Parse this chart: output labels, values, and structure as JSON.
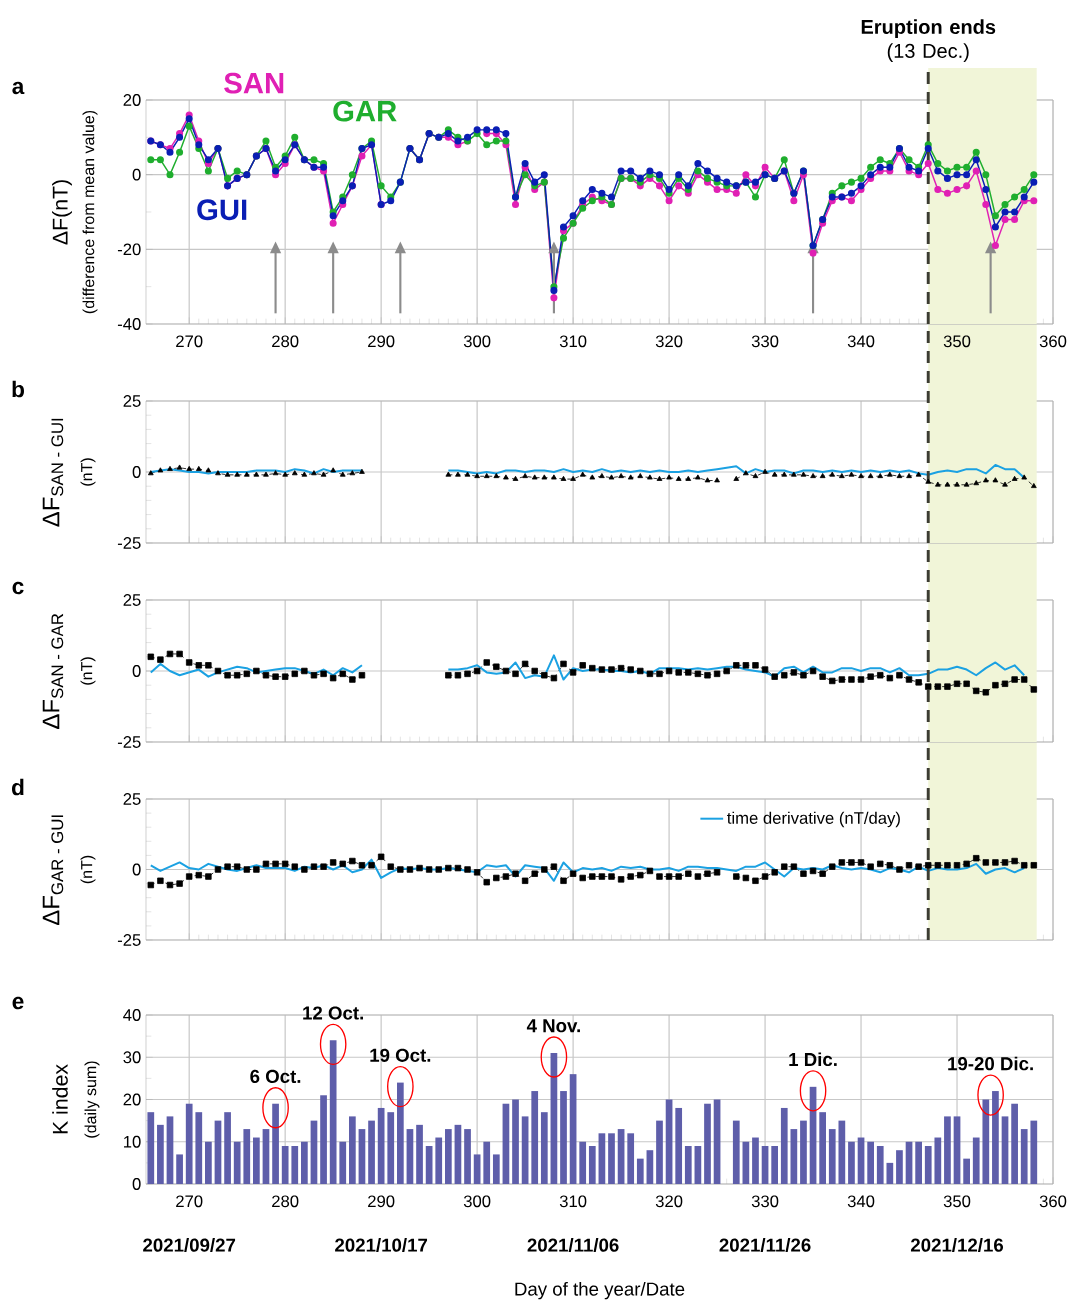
{
  "chart_data": [
    {
      "type": "line",
      "title": "a",
      "ylabel": "ΔF(nT)",
      "annotations": [
        "(difference from mean value)"
      ],
      "x": [
        266,
        267,
        268,
        269,
        270,
        271,
        272,
        273,
        274,
        275,
        276,
        277,
        278,
        279,
        280,
        281,
        282,
        283,
        284,
        285,
        286,
        287,
        288,
        289,
        290,
        291,
        292,
        293,
        294,
        295,
        296,
        297,
        298,
        299,
        300,
        301,
        302,
        303,
        304,
        305,
        306,
        307,
        308,
        309,
        310,
        311,
        312,
        313,
        314,
        315,
        316,
        317,
        318,
        319,
        320,
        321,
        322,
        323,
        324,
        325,
        326,
        327,
        328,
        329,
        330,
        331,
        332,
        333,
        334,
        335,
        336,
        337,
        338,
        339,
        340,
        341,
        342,
        343,
        344,
        345,
        346,
        347,
        348,
        349,
        350,
        351,
        352,
        353,
        354,
        355,
        356,
        357,
        358
      ],
      "xlim": [
        265.5,
        360
      ],
      "ylim": [
        -40,
        20
      ],
      "xticks": [
        270,
        280,
        290,
        300,
        310,
        320,
        330,
        340,
        350,
        360
      ],
      "yticks": [
        -40,
        -20,
        0,
        20
      ],
      "grid": true,
      "marker": "circle",
      "series": [
        {
          "name": "SAN",
          "color": "#e020b4",
          "values": [
            9,
            8,
            7,
            11,
            16,
            9,
            3,
            7,
            -3,
            -1,
            0,
            5,
            7,
            0,
            3,
            8,
            4,
            2,
            1,
            -13,
            -8,
            -3,
            5,
            8,
            -8,
            null,
            null,
            7,
            4,
            11,
            10,
            10,
            8,
            9,
            null,
            11,
            11,
            8,
            -8,
            2,
            -4,
            -2,
            -33,
            -15,
            -13,
            -8,
            -6,
            -7,
            -8,
            -1,
            -1,
            -3,
            -1,
            -3,
            -7,
            -3,
            -5,
            0,
            -2,
            -4,
            -4,
            -5,
            0,
            -3,
            2,
            -1,
            1,
            -7,
            0,
            -21,
            -13,
            -7,
            -6,
            -7,
            -4,
            -1,
            1,
            1,
            6,
            1,
            0,
            3,
            -4,
            -5,
            -4,
            -3,
            1,
            -8,
            -19,
            -12,
            -12,
            -7,
            -7
          ]
        },
        {
          "name": "GAR",
          "color": "#1fae2e",
          "values": [
            4,
            4,
            0,
            6,
            13,
            7,
            1,
            7,
            -1,
            1,
            0,
            5,
            9,
            2,
            5,
            10,
            4,
            4,
            3,
            -10,
            -6,
            0,
            7,
            9,
            -3,
            -6,
            -2,
            7,
            4,
            11,
            10,
            12,
            10,
            9,
            11,
            8,
            9,
            9,
            -6,
            0,
            -3,
            -2,
            -30,
            -17,
            -13,
            -9,
            -7,
            -6,
            -8,
            -1,
            -1,
            -2,
            0,
            -1,
            -5,
            -1,
            -4,
            1,
            -1,
            -2,
            -3,
            -3,
            -2,
            -6,
            0,
            -1,
            4,
            -5,
            1,
            -19,
            -12,
            -5,
            -3,
            -2,
            -1,
            2,
            4,
            3,
            7,
            4,
            2,
            8,
            3,
            1,
            2,
            2,
            6,
            0,
            -11,
            -8,
            -6,
            -4,
            0
          ]
        },
        {
          "name": "GUI",
          "color": "#0a1eb4",
          "values": [
            9,
            8,
            6,
            10,
            15,
            8,
            4,
            7,
            -3,
            -1,
            0,
            5,
            7,
            1,
            4,
            8,
            4,
            2,
            2,
            -11,
            -7,
            -3,
            7,
            8,
            -8,
            -7,
            -2,
            7,
            4,
            11,
            10,
            11,
            9,
            10,
            12,
            12,
            12,
            11,
            -6,
            3,
            -2,
            0,
            -31,
            -14,
            -11,
            -7,
            -4,
            -5,
            -6,
            1,
            1,
            -1,
            1,
            0,
            -4,
            0,
            -3,
            3,
            1,
            -1,
            -2,
            -3,
            -2,
            -2,
            0,
            -1,
            1,
            -5,
            1,
            -19,
            -12,
            -6,
            -6,
            -5,
            -3,
            0,
            2,
            2,
            7,
            2,
            1,
            7,
            1,
            -1,
            0,
            0,
            4,
            -4,
            -14,
            -10,
            -10,
            -6,
            -2
          ]
        }
      ],
      "ref_lines": [
        {
          "axis": "x",
          "value": 347,
          "label": "**Eruption ends** (13 Dec.)",
          "color": "#3c3c32",
          "line_style": "dashed"
        }
      ],
      "bands": [
        {
          "axis": "x",
          "from": 347,
          "to": 358.3,
          "color": "#f1f5d8"
        }
      ]
    },
    {
      "type": "line",
      "title": "b",
      "ylabel": "\\text{ΔF}_{\\text{SAN - GUI}}",
      "annotations": [
        "(nT)"
      ],
      "x": [
        266,
        267,
        268,
        269,
        270,
        271,
        272,
        273,
        274,
        275,
        276,
        277,
        278,
        279,
        280,
        281,
        282,
        283,
        284,
        285,
        286,
        287,
        288,
        289,
        290,
        291,
        292,
        293,
        294,
        295,
        296,
        297,
        298,
        299,
        300,
        301,
        302,
        303,
        304,
        305,
        306,
        307,
        308,
        309,
        310,
        311,
        312,
        313,
        314,
        315,
        316,
        317,
        318,
        319,
        320,
        321,
        322,
        323,
        324,
        325,
        326,
        327,
        328,
        329,
        330,
        331,
        332,
        333,
        334,
        335,
        336,
        337,
        338,
        339,
        340,
        341,
        342,
        343,
        344,
        345,
        346,
        347,
        348,
        349,
        350,
        351,
        352,
        353,
        354,
        355,
        356,
        357,
        358
      ],
      "xlim": [
        265.5,
        360
      ],
      "ylim": [
        -25,
        25
      ],
      "xticks": [
        270,
        280,
        290,
        300,
        310,
        320,
        330,
        340,
        350,
        360
      ],
      "yticks": [
        -25,
        0,
        25
      ],
      "grid": true,
      "tick_labels": "y",
      "series": [
        {
          "color": "#000000",
          "marker": "triangle",
          "line_style": "dashed",
          "values": [
            -0.5,
            0.5,
            1,
            1.5,
            1,
            1,
            0.5,
            -0.5,
            -1,
            -1,
            -1,
            -1,
            -1,
            -0.5,
            -1,
            -0.5,
            -1,
            -0.5,
            -1,
            0.5,
            -1,
            -0.5,
            0,
            null,
            null,
            null,
            null,
            null,
            null,
            null,
            null,
            -1,
            -1,
            -1,
            -1.5,
            -1.5,
            -1.5,
            -2,
            -2.5,
            -1.5,
            -2,
            -2,
            -2,
            -2.5,
            -2.5,
            -1,
            -2,
            -1.5,
            -2,
            -1.5,
            -2,
            -1.5,
            -2,
            -2.5,
            -2,
            -2.5,
            -2.5,
            -2,
            -3,
            -3,
            null,
            -2.5,
            -0.5,
            -1.5,
            0,
            -1,
            -1,
            -1,
            -1,
            -1.5,
            -1.5,
            -1,
            -1.5,
            -1,
            -1.5,
            -1.5,
            -1.5,
            -1,
            -1.5,
            -1.5,
            -1,
            -3.5,
            -4.5,
            -4.5,
            -4.5,
            -4.5,
            -4,
            -3,
            -3,
            -4.5,
            -2.5,
            -2,
            -5
          ]
        },
        {
          "color": "#1ba1e2",
          "marker": "none",
          "values": [
            0,
            0.5,
            1,
            0.5,
            0,
            0,
            -0.5,
            0,
            0,
            0,
            0,
            0.5,
            0.5,
            0.5,
            0,
            1,
            0.5,
            -0.5,
            1,
            0,
            0.5,
            0.5,
            0.5,
            null,
            null,
            null,
            null,
            null,
            null,
            null,
            null,
            0.5,
            0.5,
            0,
            -0.5,
            0,
            -0.5,
            0.5,
            0.5,
            0,
            0.5,
            0.5,
            0,
            1,
            0,
            0.5,
            0,
            1,
            0,
            0.5,
            0,
            0.5,
            0,
            0.5,
            0,
            0,
            0.5,
            0,
            0.5,
            1,
            1.5,
            2,
            -0.5,
            1,
            0,
            0.5,
            0.5,
            -0.5,
            0.5,
            0.5,
            0,
            0.5,
            0,
            0.5,
            0,
            0.5,
            0,
            0.5,
            0,
            0.5,
            -0.5,
            -1,
            0,
            0.5,
            0,
            1,
            1,
            -0.5,
            2.5,
            1,
            1,
            -2,
            null
          ]
        }
      ],
      "ref_lines": [
        {
          "axis": "x",
          "value": 347,
          "color": "#3c3c32",
          "line_style": "dashed"
        }
      ],
      "bands": [
        {
          "axis": "x",
          "from": 347,
          "to": 358.3,
          "color": "#f1f5d8"
        }
      ]
    },
    {
      "type": "line",
      "title": "c",
      "ylabel": "\\text{ΔF}_{\\text{SAN - GAR}}",
      "annotations": [
        "(nT)"
      ],
      "x": [
        266,
        267,
        268,
        269,
        270,
        271,
        272,
        273,
        274,
        275,
        276,
        277,
        278,
        279,
        280,
        281,
        282,
        283,
        284,
        285,
        286,
        287,
        288,
        289,
        290,
        291,
        292,
        293,
        294,
        295,
        296,
        297,
        298,
        299,
        300,
        301,
        302,
        303,
        304,
        305,
        306,
        307,
        308,
        309,
        310,
        311,
        312,
        313,
        314,
        315,
        316,
        317,
        318,
        319,
        320,
        321,
        322,
        323,
        324,
        325,
        326,
        327,
        328,
        329,
        330,
        331,
        332,
        333,
        334,
        335,
        336,
        337,
        338,
        339,
        340,
        341,
        342,
        343,
        344,
        345,
        346,
        347,
        348,
        349,
        350,
        351,
        352,
        353,
        354,
        355,
        356,
        357,
        358
      ],
      "xlim": [
        265.5,
        360
      ],
      "ylim": [
        -25,
        25
      ],
      "xticks": [
        270,
        280,
        290,
        300,
        310,
        320,
        330,
        340,
        350,
        360
      ],
      "yticks": [
        -25,
        0,
        25
      ],
      "grid": true,
      "tick_labels": "y",
      "series": [
        {
          "color": "#000000",
          "marker": "square",
          "line_style": "dashed",
          "values": [
            5,
            4,
            6,
            6,
            3,
            2,
            2,
            0,
            -1.5,
            -1.5,
            -1,
            0,
            -1.5,
            -2,
            -2,
            -1,
            0,
            -1.5,
            -1,
            -2.5,
            -1,
            -3,
            -1.5,
            null,
            null,
            null,
            null,
            null,
            null,
            null,
            null,
            -1.5,
            -1.5,
            -1,
            0,
            3,
            1.5,
            0,
            -1,
            2.5,
            0,
            -1.5,
            -2.5,
            2.5,
            -0.5,
            2,
            1,
            0.5,
            0.5,
            1,
            0.5,
            0,
            -1,
            -1,
            0,
            -0.5,
            -0.5,
            -1,
            -1.5,
            -1,
            0,
            2,
            2,
            2,
            0.5,
            -2,
            -1.5,
            -0.5,
            -1.5,
            0,
            -2,
            -3.5,
            -3,
            -3,
            -3,
            -2,
            -1.5,
            -2.5,
            -1.5,
            -3,
            -4,
            -5.5,
            -5.5,
            -5.5,
            -4.5,
            -4.5,
            -7,
            -7.5,
            -5,
            -4.5,
            -3,
            -3,
            -6.5
          ]
        },
        {
          "color": "#1ba1e2",
          "marker": "none",
          "values": [
            -0.5,
            2.5,
            0,
            -1.5,
            -0.5,
            0.5,
            -2,
            -0.5,
            0.5,
            1.5,
            1,
            -0.5,
            0,
            0.5,
            1,
            1,
            0,
            -1,
            0.5,
            -1.5,
            1,
            -0.5,
            2,
            null,
            null,
            null,
            null,
            null,
            null,
            null,
            null,
            0.5,
            0.5,
            1,
            2,
            -0.5,
            -1,
            -0.5,
            3,
            -2.5,
            -1.5,
            -2,
            5.5,
            -3,
            1,
            0,
            0.5,
            0.5,
            0,
            0,
            -0.5,
            0,
            -1,
            1,
            1,
            1,
            0.5,
            1,
            0.5,
            1,
            1.5,
            1.5,
            0.5,
            0,
            -0.5,
            -2,
            1,
            1.5,
            -0.5,
            1.5,
            -0.5,
            -0.5,
            1,
            1,
            0,
            1,
            1,
            -0.5,
            1,
            -1.5,
            -1.5,
            -1,
            0.5,
            0.5,
            1.5,
            0.5,
            -1.5,
            1,
            3,
            0.5,
            2,
            -1.5,
            null
          ]
        }
      ],
      "ref_lines": [
        {
          "axis": "x",
          "value": 347,
          "color": "#3c3c32",
          "line_style": "dashed"
        }
      ],
      "bands": [
        {
          "axis": "x",
          "from": 347,
          "to": 358.3,
          "color": "#f1f5d8"
        }
      ]
    },
    {
      "type": "line",
      "title": "d",
      "ylabel": "\\text{ΔF}_{\\text{GAR - GUI}}",
      "annotations": [
        "(nT)"
      ],
      "x": [
        266,
        267,
        268,
        269,
        270,
        271,
        272,
        273,
        274,
        275,
        276,
        277,
        278,
        279,
        280,
        281,
        282,
        283,
        284,
        285,
        286,
        287,
        288,
        289,
        290,
        291,
        292,
        293,
        294,
        295,
        296,
        297,
        298,
        299,
        300,
        301,
        302,
        303,
        304,
        305,
        306,
        307,
        308,
        309,
        310,
        311,
        312,
        313,
        314,
        315,
        316,
        317,
        318,
        319,
        320,
        321,
        322,
        323,
        324,
        325,
        326,
        327,
        328,
        329,
        330,
        331,
        332,
        333,
        334,
        335,
        336,
        337,
        338,
        339,
        340,
        341,
        342,
        343,
        344,
        345,
        346,
        347,
        348,
        349,
        350,
        351,
        352,
        353,
        354,
        355,
        356,
        357,
        358
      ],
      "xlim": [
        265.5,
        360
      ],
      "ylim": [
        -25,
        25
      ],
      "xticks": [
        270,
        280,
        290,
        300,
        310,
        320,
        330,
        340,
        350,
        360
      ],
      "yticks": [
        -25,
        0,
        25
      ],
      "grid": true,
      "tick_labels": "y",
      "legend": "top right",
      "series": [
        {
          "color": "#000000",
          "marker": "square",
          "line_style": "dashed",
          "values": [
            -5.5,
            -4,
            -5.5,
            -5,
            -2.5,
            -2,
            -2.5,
            0,
            1,
            1,
            0,
            0,
            2,
            2,
            2,
            1,
            0,
            1,
            1,
            2.5,
            2,
            3,
            1.5,
            1.5,
            4.5,
            1,
            0,
            0,
            0.5,
            0,
            0,
            0.5,
            0.5,
            0,
            -1,
            -4.5,
            -3,
            -2.5,
            -1.5,
            -4,
            -1.5,
            0,
            1,
            -4,
            -1.5,
            -3,
            -2.5,
            -2.5,
            -2.5,
            -3.5,
            -2.5,
            -2,
            -0.5,
            -2.5,
            -2.5,
            -2.5,
            -1.5,
            -2.5,
            -1.5,
            -1,
            null,
            -2.5,
            -3,
            -4,
            -2.5,
            -1,
            1,
            1,
            -1.5,
            -0.5,
            -1.5,
            1,
            2.5,
            2.5,
            2.5,
            1,
            2,
            1.5,
            0,
            1.5,
            1,
            1.5,
            1.5,
            1.5,
            1.5,
            2,
            4,
            2.5,
            2.5,
            2.5,
            3,
            1.5,
            1.5
          ]
        },
        {
          "name": "time derivative (nT/day)",
          "color": "#1ba1e2",
          "marker": "none",
          "values": [
            1.5,
            -0.5,
            1,
            2.5,
            0.5,
            0,
            2,
            1,
            0,
            -0.5,
            0.5,
            1.5,
            0.5,
            0.5,
            0.5,
            -0.5,
            1,
            0.5,
            1.5,
            0,
            1.5,
            -1,
            0,
            3.5,
            -3,
            -1,
            0.5,
            0,
            0.5,
            0,
            0,
            0.5,
            0,
            -0.5,
            -1,
            1.5,
            1,
            1.5,
            -2.5,
            1.5,
            1,
            0.5,
            -4,
            2.5,
            -1,
            0.5,
            0,
            0.5,
            -0.5,
            1,
            0.5,
            1,
            0,
            0,
            0.5,
            -0.5,
            1,
            1,
            0.5,
            0.5,
            0,
            -0.5,
            1,
            1,
            2.5,
            0,
            -2.5,
            0.5,
            0,
            0.5,
            0,
            1.5,
            0.5,
            0,
            0.5,
            0,
            -1,
            0.5,
            0,
            -1,
            1,
            -0.5,
            0.5,
            0,
            0,
            0.5,
            2,
            -1.5,
            0,
            0.5,
            -1,
            0.5,
            null
          ]
        }
      ],
      "ref_lines": [
        {
          "axis": "x",
          "value": 347,
          "color": "#3c3c32",
          "line_style": "dashed"
        }
      ],
      "bands": [
        {
          "axis": "x",
          "from": 347,
          "to": 358.3,
          "color": "#f1f5d8"
        }
      ]
    },
    {
      "type": "bar",
      "title": "e",
      "ylabel": "K index",
      "xlabel": "Day of the year/Date",
      "annotations": [
        "(daily sum)",
        {
          "text": "6 Oct.",
          "x": 279,
          "y": 19
        },
        {
          "text": "12 Oct.",
          "x": 285,
          "y": 34
        },
        {
          "text": "19 Oct.",
          "x": 292,
          "y": 24
        },
        {
          "text": "4 Nov.",
          "x": 308,
          "y": 31
        },
        {
          "text": "1 Dic.",
          "x": 335,
          "y": 23
        },
        {
          "text": "19-20 Dic.",
          "x": 353.5,
          "y": 22
        }
      ],
      "x": [
        266,
        267,
        268,
        269,
        270,
        271,
        272,
        273,
        274,
        275,
        276,
        277,
        278,
        279,
        280,
        281,
        282,
        283,
        284,
        285,
        286,
        287,
        288,
        289,
        290,
        291,
        292,
        293,
        294,
        295,
        296,
        297,
        298,
        299,
        300,
        301,
        302,
        303,
        304,
        305,
        306,
        307,
        308,
        309,
        310,
        311,
        312,
        313,
        314,
        315,
        316,
        317,
        318,
        319,
        320,
        321,
        322,
        323,
        324,
        325,
        326,
        327,
        328,
        329,
        330,
        331,
        332,
        333,
        334,
        335,
        336,
        337,
        338,
        339,
        340,
        341,
        342,
        343,
        344,
        345,
        346,
        347,
        348,
        349,
        350,
        351,
        352,
        353,
        354,
        355,
        356,
        357,
        358
      ],
      "xlim": [
        265.5,
        360
      ],
      "ylim": [
        0,
        40
      ],
      "xticks": [
        270,
        280,
        290,
        300,
        310,
        320,
        330,
        340,
        350,
        360
      ],
      "x2lim": [
        "2021-09-22T12:00",
        "2021-12-26"
      ],
      "x2ticks": [
        {
          "value": "2021-09-27",
          "label": "2021/09/27"
        },
        {
          "value": "2021-10-17",
          "label": "2021/10/17"
        },
        {
          "value": "2021-11-06",
          "label": "2021/11/06"
        },
        {
          "value": "2021-11-26",
          "label": "2021/11/26"
        },
        {
          "value": "2021-12-16",
          "label": "2021/12/16"
        }
      ],
      "yticks": [
        0,
        10,
        20,
        30,
        40
      ],
      "grid": true,
      "series": [
        {
          "color": "#5e5eaa",
          "values": [
            17,
            14,
            16,
            7,
            19,
            17,
            10,
            15,
            17,
            10,
            13,
            11,
            13,
            19,
            9,
            9,
            10,
            15,
            21,
            34,
            10,
            16,
            13,
            15,
            18,
            17,
            24,
            13,
            14,
            9,
            11,
            13,
            14,
            13,
            7,
            10,
            7,
            19,
            20,
            16,
            22,
            17,
            31,
            22,
            26,
            10,
            9,
            12,
            12,
            13,
            12,
            6,
            8,
            15,
            20,
            18,
            9,
            9,
            19,
            20,
            null,
            15,
            10,
            11,
            9,
            9,
            18,
            13,
            15,
            23,
            17,
            13,
            15,
            10,
            11,
            10,
            9,
            5,
            8,
            10,
            10,
            9,
            11,
            16,
            16,
            6,
            11,
            20,
            22,
            16,
            19,
            13,
            15
          ]
        }
      ]
    }
  ]
}
